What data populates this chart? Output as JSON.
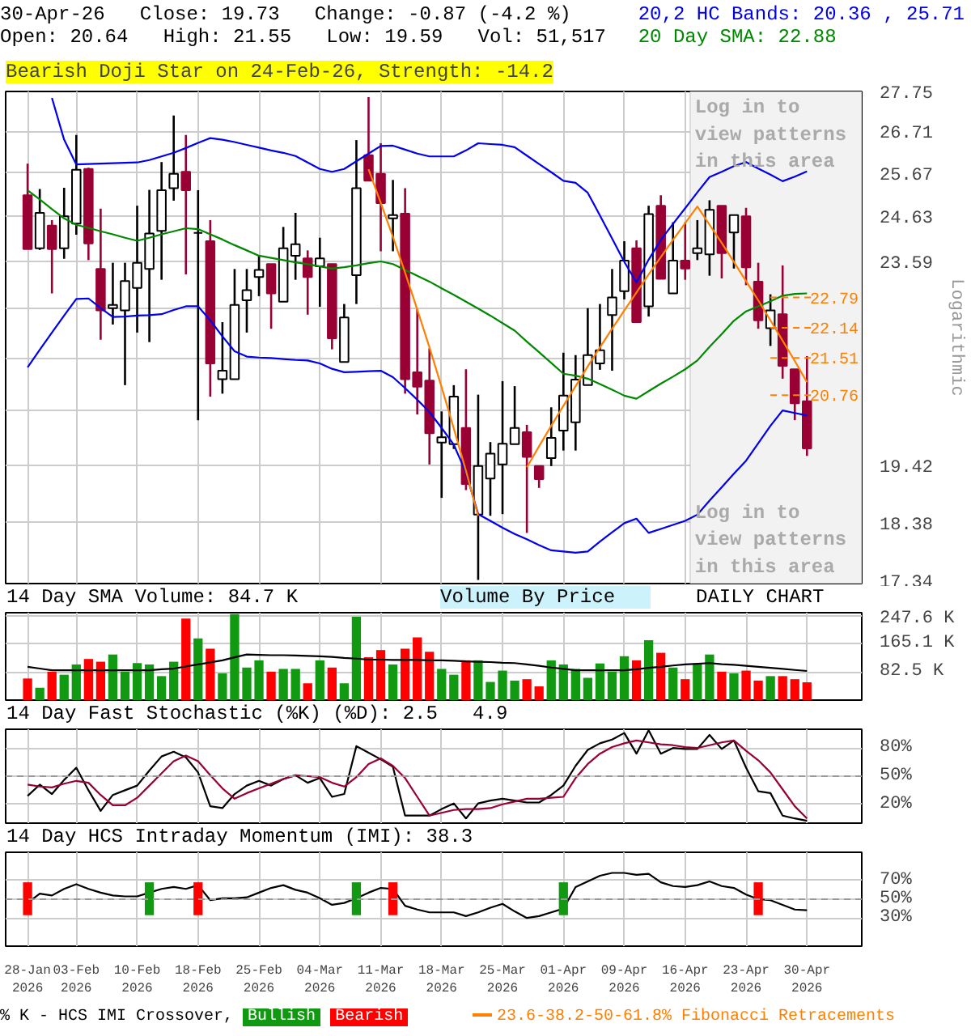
{
  "chart_data": [
    {
      "type": "candlestick",
      "title": "Bearish Doji Star on 24-Feb-26, Strength: -14.2",
      "annotations": [
        "30-Apr-26   Close: 19.73   Change: -0.87 (-4.2 %)",
        "Open: 20.64   High: 21.55   Low: 19.59   Vol: 51,517",
        "Log in to\nview patterns\nin this area"
      ],
      "ylabel": "Logarithmic",
      "log": true,
      "grid": true,
      "tick_labels": "y",
      "ylim": [
        17.34,
        27.75
      ],
      "yticks": [
        17.34,
        18.38,
        19.42,
        {
          "value": 20.46,
          "label": null
        },
        {
          "value": 21.5,
          "label": null
        },
        {
          "value": 22.54,
          "label": null
        },
        23.59,
        24.63,
        25.67,
        26.71,
        27.75
      ],
      "categories": [
        null,
        null,
        null,
        null,
        null,
        null,
        null,
        null,
        null,
        null,
        null,
        null,
        null,
        null,
        null,
        null,
        null,
        null,
        null,
        null,
        null,
        null,
        null,
        null,
        null,
        null,
        null,
        null,
        null,
        null,
        null,
        null,
        null,
        null,
        null,
        null,
        null,
        null,
        null,
        null,
        null,
        null,
        null,
        null,
        null,
        null,
        null,
        null,
        null,
        null,
        null,
        null,
        null,
        null,
        null,
        null,
        null,
        null,
        null,
        null,
        null,
        null,
        null,
        null,
        null
      ],
      "ohlc": [
        [
          25.13,
          25.9,
          23.87,
          23.87
        ],
        [
          23.89,
          25.28,
          23.85,
          24.71
        ],
        [
          24.41,
          24.54,
          22.88,
          23.87
        ],
        [
          23.89,
          25.31,
          23.65,
          24.63
        ],
        [
          24.46,
          26.62,
          24.2,
          25.75
        ],
        [
          25.77,
          25.8,
          23.62,
          24.0
        ],
        [
          23.42,
          24.81,
          21.89,
          22.51
        ],
        [
          22.56,
          23.56,
          22.21,
          22.63
        ],
        [
          22.51,
          23.56,
          20.96,
          23.15
        ],
        [
          23.0,
          24.88,
          22.04,
          23.56
        ],
        [
          23.42,
          25.26,
          21.84,
          24.23
        ],
        [
          24.29,
          25.94,
          23.18,
          25.25
        ],
        [
          25.3,
          27.12,
          25.0,
          25.65
        ],
        [
          25.7,
          26.62,
          23.3,
          25.25
        ],
        [
          24.24,
          25.25,
          20.27,
          24.24
        ],
        [
          24.05,
          24.54,
          20.73,
          21.4
        ],
        [
          21.08,
          22.26,
          20.79,
          21.25
        ],
        [
          21.08,
          23.42,
          21.08,
          22.63
        ],
        [
          22.73,
          23.42,
          22.04,
          22.95
        ],
        [
          23.24,
          23.72,
          22.82,
          23.4
        ],
        [
          23.53,
          23.53,
          22.12,
          22.88
        ],
        [
          22.7,
          24.38,
          22.7,
          23.89
        ],
        [
          23.72,
          24.71,
          23.18,
          23.98
        ],
        [
          23.66,
          23.84,
          22.42,
          23.24
        ],
        [
          23.48,
          24.13,
          22.59,
          23.66
        ],
        [
          23.53,
          23.53,
          21.69,
          21.92
        ],
        [
          21.43,
          22.65,
          21.43,
          22.36
        ],
        [
          23.28,
          26.49,
          22.65,
          25.3
        ],
        [
          26.11,
          27.6,
          25.48,
          25.48
        ],
        [
          25.65,
          26.41,
          23.82,
          24.94
        ],
        [
          24.58,
          25.5,
          23.82,
          24.66
        ],
        [
          24.69,
          25.3,
          20.79,
          21.08
        ],
        [
          21.22,
          22.54,
          20.38,
          20.93
        ],
        [
          21.05,
          21.71,
          19.43,
          20.02
        ],
        [
          19.84,
          20.44,
          18.82,
          19.94
        ],
        [
          19.81,
          20.96,
          19.72,
          20.73
        ],
        [
          20.12,
          21.28,
          18.96,
          19.07
        ],
        [
          18.52,
          20.77,
          17.4,
          19.4
        ],
        [
          19.17,
          19.85,
          18.5,
          19.63
        ],
        [
          19.43,
          21.04,
          18.53,
          19.82
        ],
        [
          19.81,
          20.94,
          19.81,
          20.12
        ],
        [
          20.04,
          20.18,
          18.2,
          19.57
        ],
        [
          19.4,
          19.4,
          19.0,
          19.16
        ],
        [
          19.55,
          20.52,
          19.4,
          19.93
        ],
        [
          20.07,
          21.62,
          19.69,
          20.75
        ],
        [
          20.23,
          21.57,
          19.69,
          21.07
        ],
        [
          20.96,
          22.56,
          20.96,
          21.57
        ],
        [
          21.4,
          22.65,
          21.27,
          21.67
        ],
        [
          22.41,
          23.42,
          21.25,
          22.79
        ],
        [
          22.93,
          24.05,
          22.75,
          23.61
        ],
        [
          23.89,
          24.07,
          22.26,
          22.26
        ],
        [
          22.6,
          24.88,
          22.38,
          24.68
        ],
        [
          24.88,
          25.13,
          23.2,
          23.2
        ],
        [
          22.88,
          24.49,
          22.88,
          23.61
        ],
        [
          23.61,
          24.49,
          23.18,
          23.43
        ],
        [
          23.78,
          24.54,
          23.62,
          23.89
        ],
        [
          23.75,
          25.01,
          23.27,
          24.78
        ],
        [
          24.88,
          24.88,
          23.21,
          23.78
        ],
        [
          24.25,
          24.66,
          23.43,
          24.66
        ],
        [
          24.63,
          24.83,
          23.06,
          23.46
        ],
        [
          23.14,
          23.56,
          22.12,
          22.3
        ],
        [
          22.13,
          22.86,
          21.76,
          22.51
        ],
        [
          22.43,
          23.5,
          21.09,
          21.35
        ],
        [
          21.28,
          21.28,
          20.27,
          20.6
        ],
        [
          20.64,
          21.55,
          19.59,
          19.73
        ]
      ],
      "colors": [
        "#990033",
        "#ffffff",
        "#990033",
        "#ffffff",
        "#ffffff",
        "#990033",
        "#990033",
        "#ffffff",
        "#ffffff",
        "#ffffff",
        "#ffffff",
        "#ffffff",
        "#ffffff",
        "#990033",
        "#000000",
        "#990033",
        "#ffffff",
        "#ffffff",
        "#ffffff",
        "#ffffff",
        "#990033",
        "#ffffff",
        "#ffffff",
        "#990033",
        "#ffffff",
        "#990033",
        "#ffffff",
        "#ffffff",
        "#990033",
        "#990033",
        "#ffffff",
        "#990033",
        "#990033",
        "#990033",
        "#ffffff",
        "#ffffff",
        "#990033",
        "#ffffff",
        "#ffffff",
        "#ffffff",
        "#ffffff",
        "#990033",
        "#990033",
        "#ffffff",
        "#ffffff",
        "#ffffff",
        "#ffffff",
        "#ffffff",
        "#ffffff",
        "#ffffff",
        "#990033",
        "#ffffff",
        "#990033",
        "#ffffff",
        "#990033",
        "#ffffff",
        "#ffffff",
        "#990033",
        "#ffffff",
        "#990033",
        "#990033",
        "#ffffff",
        "#990033",
        "#990033",
        "#990033"
      ],
      "ref_lines": [
        {
          "axis": "y",
          "value": 22.79,
          "label": "22.79",
          "color": "#ff8000",
          "line_style": "dashed"
        },
        {
          "axis": "y",
          "value": 22.14,
          "label": "22.14",
          "color": "#ff8000",
          "line_style": "dashed"
        },
        {
          "axis": "y",
          "value": 21.51,
          "label": "21.51",
          "color": "#ff8000",
          "line_style": "dashed"
        },
        {
          "axis": "y",
          "value": 20.76,
          "label": "20.76",
          "color": "#ff8000",
          "line_style": "dashed"
        }
      ],
      "series": [
        {
          "type": "line",
          "name": "20,2 HC Bands: 20.36 , 25.71",
          "color": "#0000ee",
          "values": [
            null,
            null,
            27.58,
            26.5,
            25.88,
            25.89,
            25.9,
            25.91,
            25.92,
            25.93,
            25.99,
            26.08,
            26.17,
            26.29,
            26.42,
            26.54,
            26.5,
            26.44,
            26.37,
            26.3,
            26.23,
            26.17,
            26.09,
            25.93,
            25.77,
            25.7,
            25.77,
            25.96,
            26.15,
            26.34,
            26.35,
            26.25,
            26.15,
            26.08,
            26.08,
            26.08,
            26.23,
            26.41,
            26.39,
            26.37,
            26.31,
            26.1,
            25.89,
            25.69,
            25.48,
            25.43,
            25.19,
            24.65,
            24.11,
            23.58,
            23.12,
            23.63,
            24.08,
            24.45,
            24.82,
            25.2,
            25.57,
            25.7,
            25.84,
            25.94,
            25.78,
            25.63,
            25.47,
            25.58,
            25.71
          ]
        },
        {
          "type": "line",
          "color": "#0000ee",
          "values": [
            21.32,
            21.68,
            22.04,
            22.4,
            22.76,
            22.77,
            22.56,
            22.37,
            22.38,
            22.4,
            22.41,
            22.43,
            22.52,
            22.6,
            22.6,
            22.3,
            21.96,
            21.65,
            21.54,
            21.52,
            21.51,
            21.49,
            21.47,
            21.46,
            21.4,
            21.29,
            21.22,
            21.23,
            21.24,
            21.25,
            21.12,
            20.9,
            20.67,
            20.43,
            20.12,
            19.8,
            19.28,
            18.53,
            18.41,
            18.29,
            18.18,
            18.09,
            17.99,
            17.9,
            17.88,
            17.86,
            17.88,
            18.05,
            18.21,
            18.37,
            18.45,
            18.2,
            18.27,
            18.34,
            18.41,
            18.52,
            18.77,
            19.01,
            19.26,
            19.5,
            19.83,
            20.16,
            20.46,
            20.41,
            20.36
          ]
        },
        {
          "type": "line",
          "name": "20 Day SMA: 22.88",
          "color": "#008800",
          "values": [
            25.25,
            25.03,
            24.8,
            24.58,
            24.43,
            24.36,
            24.28,
            24.21,
            24.13,
            24.06,
            24.13,
            24.21,
            24.28,
            24.35,
            24.33,
            24.21,
            24.09,
            23.96,
            23.84,
            23.72,
            23.67,
            23.62,
            23.57,
            23.53,
            23.48,
            23.43,
            23.46,
            23.5,
            23.55,
            23.59,
            23.53,
            23.4,
            23.27,
            23.14,
            22.99,
            22.85,
            22.7,
            22.55,
            22.4,
            22.24,
            22.08,
            21.85,
            21.63,
            21.41,
            21.19,
            21.15,
            21.09,
            20.98,
            20.87,
            20.75,
            20.69,
            20.84,
            20.99,
            21.13,
            21.28,
            21.46,
            21.74,
            22.01,
            22.29,
            22.49,
            22.6,
            22.71,
            22.83,
            22.87,
            22.88
          ]
        },
        {
          "type": "line",
          "name": "23.6-38.2-50-61.8% Fibonacci Retracements",
          "color": "#ff8000",
          "values": [
            null,
            null,
            null,
            null,
            null,
            null,
            null,
            null,
            null,
            null,
            null,
            null,
            null,
            null,
            null,
            null,
            null,
            null,
            null,
            null,
            null,
            null,
            null,
            null,
            null,
            null,
            null,
            null,
            25.76,
            24.95,
            24.15,
            23.34,
            22.53,
            21.73,
            20.92,
            20.11,
            19.31,
            18.5,
            null,
            null,
            null,
            19.38,
            19.77,
            20.16,
            20.55,
            20.94,
            21.34,
            21.73,
            22.12,
            22.51,
            22.9,
            23.3,
            23.69,
            24.08,
            24.47,
            24.86,
            24.43,
            24.01,
            23.58,
            23.15,
            22.73,
            22.3,
            21.87,
            21.45,
            21.02
          ]
        }
      ]
    },
    {
      "type": "bar",
      "title": "14 Day SMA Volume: 84.7 K",
      "annotations": [
        "Volume By Price",
        "DAILY CHART"
      ],
      "grid": true,
      "tick_labels": "y",
      "ylim": [
        0,
        255
      ],
      "yticks": [
        {
          "value": 82.5,
          "label": "82.5 K"
        },
        {
          "value": 165.1,
          "label": "165.1 K"
        },
        {
          "value": 247.6,
          "label": "247.6 K"
        }
      ],
      "categories": [
        null,
        null,
        null,
        null,
        null,
        null,
        null,
        null,
        null,
        null,
        null,
        null,
        null,
        null,
        null,
        null,
        null,
        null,
        null,
        null,
        null,
        null,
        null,
        null,
        null,
        null,
        null,
        null,
        null,
        null,
        null,
        null,
        null,
        null,
        null,
        null,
        null,
        null,
        null,
        null,
        null,
        null,
        null,
        null,
        null,
        null,
        null,
        null,
        null,
        null,
        null,
        null,
        null,
        null,
        null,
        null,
        null,
        null,
        null,
        null,
        null,
        null,
        null,
        null,
        null
      ],
      "values": [
        63,
        36,
        83,
        74,
        104,
        120,
        112,
        133,
        83,
        108,
        104,
        70,
        112,
        238,
        180,
        150,
        78,
        251,
        95,
        116,
        83,
        91,
        91,
        49,
        116,
        95,
        49,
        243,
        125,
        146,
        104,
        150,
        183,
        141,
        91,
        74,
        116,
        116,
        53,
        86,
        57,
        61,
        40,
        116,
        104,
        91,
        65,
        107,
        83,
        128,
        116,
        175,
        138,
        95,
        61,
        104,
        133,
        83,
        78,
        86,
        57,
        70,
        70,
        61,
        52
      ],
      "colors": [
        "#ff0000",
        "#119911",
        "#ff0000",
        "#119911",
        "#119911",
        "#ff0000",
        "#ff0000",
        "#119911",
        "#119911",
        "#119911",
        "#119911",
        "#119911",
        "#119911",
        "#ff0000",
        "#119911",
        "#ff0000",
        "#119911",
        "#119911",
        "#119911",
        "#119911",
        "#ff0000",
        "#119911",
        "#119911",
        "#ff0000",
        "#119911",
        "#ff0000",
        "#119911",
        "#119911",
        "#ff0000",
        "#ff0000",
        "#119911",
        "#ff0000",
        "#ff0000",
        "#ff0000",
        "#119911",
        "#119911",
        "#ff0000",
        "#119911",
        "#119911",
        "#119911",
        "#119911",
        "#ff0000",
        "#ff0000",
        "#119911",
        "#119911",
        "#119911",
        "#119911",
        "#119911",
        "#119911",
        "#119911",
        "#ff0000",
        "#119911",
        "#ff0000",
        "#119911",
        "#ff0000",
        "#119911",
        "#119911",
        "#ff0000",
        "#119911",
        "#ff0000",
        "#ff0000",
        "#119911",
        "#ff0000",
        "#ff0000",
        "#ff0000"
      ],
      "series": [
        {
          "type": "line",
          "color": "#000000",
          "values": [
            97,
            92,
            87,
            87,
            87,
            87,
            87,
            87,
            87,
            87,
            87,
            90,
            92,
            98,
            104,
            110,
            116,
            125,
            133,
            132,
            131,
            131,
            130,
            129,
            128,
            126,
            123,
            121,
            118,
            118,
            117,
            117,
            117,
            116,
            116,
            115,
            113,
            112,
            111,
            109,
            108,
            104,
            100,
            95,
            91,
            87,
            87,
            87,
            87,
            87,
            90,
            94,
            97,
            101,
            104,
            106,
            108,
            105,
            103,
            100,
            97,
            94,
            91,
            88,
            85
          ]
        }
      ]
    },
    {
      "type": "line",
      "title": "14 Day Fast Stochastic (%K) (%D): 2.5   4.9",
      "grid": true,
      "tick_labels": "y",
      "ylim": [
        0,
        100
      ],
      "yticks": [
        {
          "value": 20,
          "label": "20%"
        },
        {
          "value": 50,
          "label": "50%"
        },
        {
          "value": 80,
          "label": "80%"
        }
      ],
      "categories": [
        null,
        null,
        null,
        null,
        null,
        null,
        null,
        null,
        null,
        null,
        null,
        null,
        null,
        null,
        null,
        null,
        null,
        null,
        null,
        null,
        null,
        null,
        null,
        null,
        null,
        null,
        null,
        null,
        null,
        null,
        null,
        null,
        null,
        null,
        null,
        null,
        null,
        null,
        null,
        null,
        null,
        null,
        null,
        null,
        null,
        null,
        null,
        null,
        null,
        null,
        null,
        null,
        null,
        null,
        null,
        null,
        null,
        null,
        null,
        null,
        null,
        null,
        null,
        null,
        null
      ],
      "ref_lines": [
        {
          "axis": "y",
          "value": 50,
          "color": "#999999",
          "line_style": "dashed"
        }
      ],
      "series": [
        {
          "color": "#000000",
          "values": [
            29,
            41,
            31,
            46,
            59,
            35,
            13,
            30,
            35,
            40,
            56,
            71,
            76,
            70,
            54,
            18,
            16,
            31,
            40,
            45,
            40,
            47,
            51,
            43,
            48,
            28,
            31,
            82,
            75,
            68,
            60,
            8,
            8,
            8,
            15,
            21,
            5,
            21,
            24,
            26,
            24,
            22,
            22,
            30,
            40,
            61,
            78,
            85,
            89,
            96,
            74,
            99,
            74,
            80,
            79,
            79,
            94,
            79,
            88,
            59,
            34,
            32,
            8,
            5,
            2.5
          ]
        },
        {
          "color": "#990033",
          "values": [
            41,
            39,
            38,
            42,
            45,
            43,
            30,
            19,
            19,
            27,
            40,
            53,
            66,
            72,
            66,
            51,
            37,
            26,
            32,
            37,
            42,
            47,
            51,
            50,
            49,
            43,
            39,
            49,
            63,
            69,
            61,
            48,
            28,
            8,
            11,
            14,
            15,
            15,
            16,
            20,
            23,
            26,
            26,
            27,
            28,
            48,
            63,
            74,
            81,
            85,
            88,
            86,
            84,
            83,
            81,
            80,
            83,
            86,
            88,
            77,
            67,
            54,
            36,
            18,
            4.9
          ]
        }
      ]
    },
    {
      "type": "line",
      "title": "14 Day HCS Intraday Momentum (IMI): 38.3",
      "grid": true,
      "legend": "bottom",
      "legend_title": "% K - HCS IMI Crossover,",
      "ylim": [
        0,
        100
      ],
      "yticks": [
        {
          "value": 30,
          "label": "30%"
        },
        {
          "value": 50,
          "label": "50%"
        },
        {
          "value": 70,
          "label": "70%"
        }
      ],
      "categories": [
        "28-Jan\n2026",
        null,
        null,
        null,
        "03-Feb\n2026",
        null,
        null,
        null,
        null,
        "10-Feb\n2026",
        null,
        null,
        null,
        null,
        "18-Feb\n2026",
        null,
        null,
        null,
        null,
        "25-Feb\n2026",
        null,
        null,
        null,
        null,
        "04-Mar\n2026",
        null,
        null,
        null,
        null,
        "11-Mar\n2026",
        null,
        null,
        null,
        null,
        "18-Mar\n2026",
        null,
        null,
        null,
        null,
        "25-Mar\n2026",
        null,
        null,
        null,
        null,
        "01-Apr\n2026",
        null,
        null,
        null,
        null,
        "09-Apr\n2026",
        null,
        null,
        null,
        null,
        "16-Apr\n2026",
        null,
        null,
        null,
        null,
        "23-Apr\n2026",
        null,
        null,
        null,
        null,
        "30-Apr\n2026"
      ],
      "ref_lines": [
        {
          "axis": "y",
          "value": 50,
          "color": "#999999",
          "line_style": "dashed"
        }
      ],
      "series": [
        {
          "color": "#000000",
          "values": [
            46,
            56,
            54,
            61,
            66,
            61,
            57,
            54,
            53,
            53,
            57,
            61,
            63,
            61,
            65,
            49,
            51,
            51,
            52,
            57,
            62,
            65,
            60,
            57,
            51,
            44,
            46,
            51,
            57,
            62,
            61,
            43,
            39,
            36,
            36,
            36,
            32,
            36,
            41,
            45,
            37,
            30,
            32,
            36,
            40,
            63,
            69,
            75,
            78,
            78,
            76,
            77,
            68,
            64,
            63,
            65,
            69,
            64,
            62,
            55,
            50,
            49,
            44,
            39,
            38.3
          ]
        },
        {
          "type": "bar",
          "name": "Bullish",
          "color": "#119911",
          "values": [
            null,
            null,
            null,
            null,
            null,
            null,
            null,
            null,
            null,
            null,
            35,
            null,
            null,
            null,
            null,
            null,
            null,
            null,
            null,
            null,
            null,
            null,
            null,
            null,
            null,
            null,
            null,
            35,
            null,
            null,
            null,
            null,
            null,
            null,
            null,
            null,
            null,
            null,
            null,
            null,
            null,
            null,
            null,
            null,
            35,
            null,
            null,
            null,
            null,
            null,
            null,
            null,
            null,
            null,
            null,
            null,
            null,
            null,
            null,
            null,
            null,
            null,
            null,
            null,
            null
          ],
          "base": [
            null,
            null,
            null,
            null,
            null,
            null,
            null,
            null,
            null,
            null,
            33,
            null,
            null,
            null,
            null,
            null,
            null,
            null,
            null,
            null,
            null,
            null,
            null,
            null,
            null,
            null,
            null,
            33,
            null,
            null,
            null,
            null,
            null,
            null,
            null,
            null,
            null,
            null,
            null,
            null,
            null,
            null,
            null,
            null,
            33,
            null,
            null,
            null,
            null,
            null,
            null,
            null,
            null,
            null,
            null,
            null,
            null,
            null,
            null,
            null,
            null,
            null,
            null,
            null,
            null
          ]
        },
        {
          "type": "bar",
          "name": "Bearish",
          "color": "#ff0000",
          "values": [
            35,
            null,
            null,
            null,
            null,
            null,
            null,
            null,
            null,
            null,
            null,
            null,
            null,
            null,
            35,
            null,
            null,
            null,
            null,
            null,
            null,
            null,
            null,
            null,
            null,
            null,
            null,
            null,
            null,
            null,
            35,
            null,
            null,
            null,
            null,
            null,
            null,
            null,
            null,
            null,
            null,
            null,
            null,
            null,
            null,
            null,
            null,
            null,
            null,
            null,
            null,
            null,
            null,
            null,
            null,
            null,
            null,
            null,
            null,
            null,
            35,
            null,
            null,
            null,
            null
          ],
          "base": [
            33,
            null,
            null,
            null,
            null,
            null,
            null,
            null,
            null,
            null,
            null,
            null,
            null,
            null,
            33,
            null,
            null,
            null,
            null,
            null,
            null,
            null,
            null,
            null,
            null,
            null,
            null,
            null,
            null,
            null,
            33,
            null,
            null,
            null,
            null,
            null,
            null,
            null,
            null,
            null,
            null,
            null,
            null,
            null,
            null,
            null,
            null,
            null,
            null,
            null,
            null,
            null,
            null,
            null,
            null,
            null,
            null,
            null,
            null,
            null,
            33,
            null,
            null,
            null,
            null
          ]
        }
      ]
    }
  ]
}
